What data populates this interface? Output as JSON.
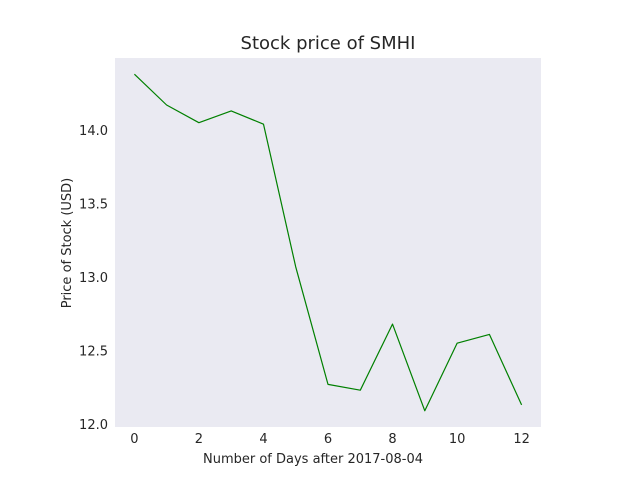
{
  "chart_data": {
    "type": "line",
    "title": "Stock price of SMHI",
    "xlabel": "Number of Days after 2017-08-04",
    "ylabel": "Price of Stock (USD)",
    "xlim": [
      -0.6,
      12.6
    ],
    "ylim": [
      11.98,
      14.49
    ],
    "xticks": [
      0,
      2,
      4,
      6,
      8,
      10,
      12
    ],
    "xtick_labels": [
      "0",
      "2",
      "4",
      "6",
      "8",
      "10",
      "12"
    ],
    "yticks": [
      12.0,
      12.5,
      13.0,
      13.5,
      14.0
    ],
    "ytick_labels": [
      "12.0",
      "12.5",
      "13.0",
      "13.5",
      "14.0"
    ],
    "grid": false,
    "series": [
      {
        "color": "#008000",
        "x": [
          0,
          1,
          2,
          3,
          4,
          5,
          6,
          7,
          8,
          9,
          10,
          11,
          12
        ],
        "y": [
          14.38,
          14.17,
          14.05,
          14.13,
          14.04,
          13.07,
          12.27,
          12.23,
          12.68,
          12.09,
          12.55,
          12.61,
          12.13
        ]
      }
    ],
    "plot_background": "#eaeaf2"
  }
}
